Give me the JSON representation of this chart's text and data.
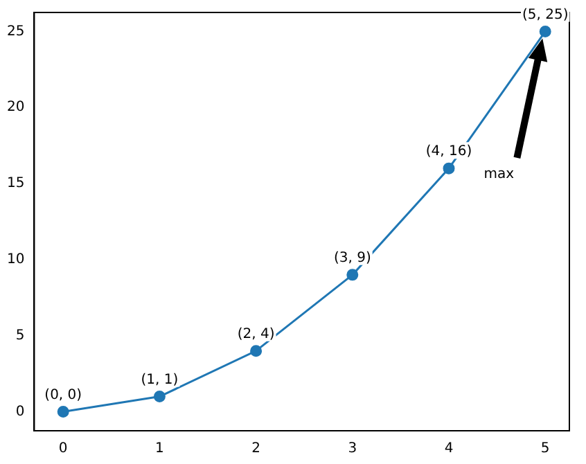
{
  "chart_data": {
    "type": "line",
    "x": [
      0,
      1,
      2,
      3,
      4,
      5
    ],
    "series": [
      {
        "color": "#1f77b4",
        "values": [
          0,
          1,
          4,
          9,
          16,
          25
        ]
      }
    ],
    "xlim": [
      -0.3,
      5.25
    ],
    "ylim": [
      -1.25,
      26.25
    ],
    "xticks": [
      0,
      1,
      2,
      3,
      4,
      5
    ],
    "yticks": [
      0,
      5,
      10,
      15,
      20,
      25
    ],
    "grid": false,
    "legend": false,
    "marker": "circle",
    "line_style": "solid",
    "annotations": [
      {
        "text": "(0, 0)",
        "x": 0,
        "y": 0
      },
      {
        "text": "(1, 1)",
        "x": 1,
        "y": 1
      },
      {
        "text": "(2, 4)",
        "x": 2,
        "y": 4
      },
      {
        "text": "(3, 9)",
        "x": 3,
        "y": 9
      },
      {
        "text": "(4, 16)",
        "x": 4,
        "y": 16
      },
      {
        "text": "(5, 25)",
        "x": 5,
        "y": 25
      },
      "max"
    ]
  }
}
